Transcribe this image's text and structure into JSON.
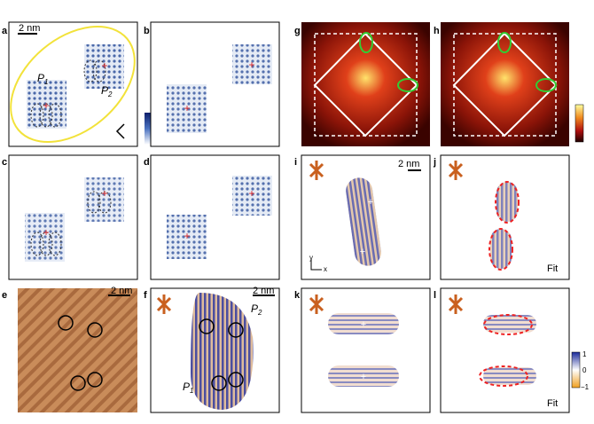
{
  "panels": [
    "a",
    "b",
    "c",
    "d",
    "e",
    "f",
    "g",
    "h",
    "i",
    "j",
    "k",
    "l"
  ],
  "scale_bars": {
    "a": "2 nm",
    "e": "2 nm",
    "f": "2 nm",
    "i": "2 nm"
  },
  "annotations": {
    "a_p1": {
      "text": "P",
      "sub": "1"
    },
    "a_p2": {
      "text": "P",
      "sub": "2"
    },
    "f_p1": {
      "text": "P",
      "sub": "1"
    },
    "f_p2": {
      "text": "P",
      "sub": "2"
    }
  },
  "axes_i": {
    "y": "y",
    "x": "x"
  },
  "fit_labels": {
    "j": "Fit",
    "l": "Fit"
  },
  "colorbar_kl": {
    "ticks": [
      "1",
      "0",
      "−1"
    ]
  }
}
